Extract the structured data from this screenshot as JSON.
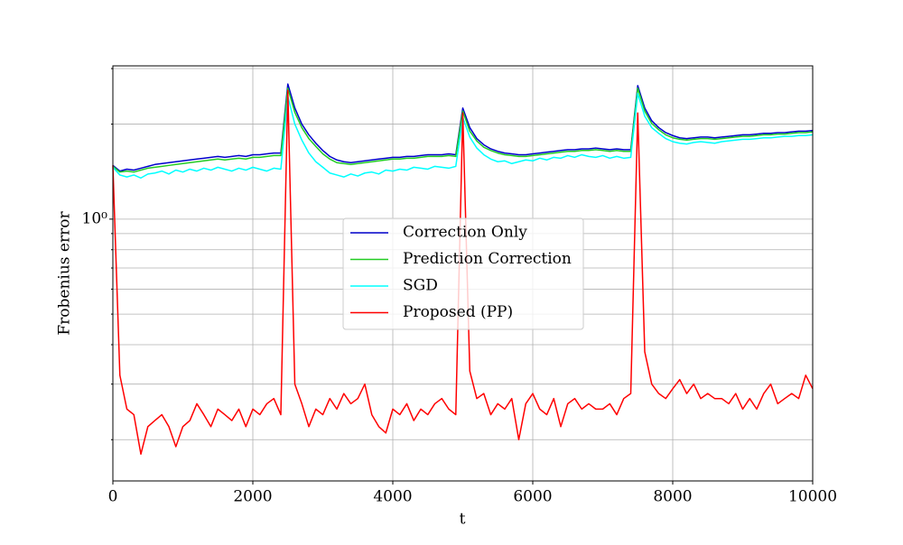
{
  "chart_data": {
    "type": "line",
    "x_label": "t",
    "y_label": "Frobenius error",
    "log_y": true,
    "grid": true,
    "legend": "center",
    "xlim": [
      0,
      10000
    ],
    "ylim": [
      0.148,
      3.06
    ],
    "xticks": [
      0,
      2000,
      4000,
      6000,
      8000,
      10000
    ],
    "yticks": [
      {
        "value": 1,
        "label": "10⁰"
      }
    ],
    "minor_yticks": [
      0.2,
      0.3,
      0.4,
      0.5,
      0.6,
      0.7,
      0.8,
      0.9,
      2,
      3
    ],
    "x": [
      0,
      100,
      200,
      300,
      400,
      500,
      600,
      700,
      800,
      900,
      1000,
      1100,
      1200,
      1300,
      1400,
      1500,
      1600,
      1700,
      1800,
      1900,
      2000,
      2100,
      2200,
      2300,
      2400,
      2500,
      2600,
      2700,
      2800,
      2900,
      3000,
      3100,
      3200,
      3300,
      3400,
      3500,
      3600,
      3700,
      3800,
      3900,
      4000,
      4100,
      4200,
      4300,
      4400,
      4500,
      4600,
      4700,
      4800,
      4900,
      5000,
      5100,
      5200,
      5300,
      5400,
      5500,
      5600,
      5700,
      5800,
      5900,
      6000,
      6100,
      6200,
      6300,
      6400,
      6500,
      6600,
      6700,
      6800,
      6900,
      7000,
      7100,
      7200,
      7300,
      7400,
      7500,
      7600,
      7700,
      7800,
      7900,
      8000,
      8100,
      8200,
      8300,
      8400,
      8500,
      8600,
      8700,
      8800,
      8900,
      9000,
      9100,
      9200,
      9300,
      9400,
      9500,
      9600,
      9700,
      9800,
      9900,
      10000
    ],
    "series": [
      {
        "name": "Correction Only",
        "color": "#0000cc",
        "values": [
          1.48,
          1.42,
          1.44,
          1.43,
          1.45,
          1.47,
          1.49,
          1.5,
          1.51,
          1.52,
          1.53,
          1.54,
          1.55,
          1.56,
          1.57,
          1.58,
          1.57,
          1.58,
          1.59,
          1.58,
          1.6,
          1.6,
          1.61,
          1.62,
          1.62,
          2.68,
          2.25,
          2.0,
          1.85,
          1.74,
          1.65,
          1.58,
          1.54,
          1.52,
          1.51,
          1.52,
          1.53,
          1.54,
          1.55,
          1.56,
          1.57,
          1.57,
          1.58,
          1.58,
          1.59,
          1.6,
          1.6,
          1.6,
          1.61,
          1.6,
          2.25,
          1.95,
          1.8,
          1.72,
          1.67,
          1.64,
          1.62,
          1.61,
          1.6,
          1.6,
          1.61,
          1.62,
          1.63,
          1.64,
          1.65,
          1.66,
          1.66,
          1.67,
          1.67,
          1.68,
          1.67,
          1.66,
          1.67,
          1.66,
          1.66,
          2.65,
          2.25,
          2.05,
          1.95,
          1.88,
          1.84,
          1.81,
          1.8,
          1.81,
          1.82,
          1.82,
          1.81,
          1.82,
          1.83,
          1.84,
          1.85,
          1.85,
          1.86,
          1.87,
          1.87,
          1.88,
          1.88,
          1.89,
          1.9,
          1.9,
          1.91
        ]
      },
      {
        "name": "Prediction Correction",
        "color": "#22cc22",
        "values": [
          1.47,
          1.41,
          1.42,
          1.41,
          1.43,
          1.45,
          1.46,
          1.47,
          1.48,
          1.49,
          1.5,
          1.51,
          1.52,
          1.53,
          1.54,
          1.55,
          1.54,
          1.55,
          1.56,
          1.55,
          1.57,
          1.57,
          1.58,
          1.59,
          1.59,
          2.6,
          2.18,
          1.95,
          1.8,
          1.7,
          1.61,
          1.55,
          1.51,
          1.5,
          1.49,
          1.5,
          1.51,
          1.52,
          1.53,
          1.54,
          1.55,
          1.55,
          1.56,
          1.56,
          1.57,
          1.58,
          1.58,
          1.58,
          1.59,
          1.58,
          2.2,
          1.9,
          1.77,
          1.69,
          1.65,
          1.62,
          1.6,
          1.59,
          1.58,
          1.58,
          1.59,
          1.6,
          1.61,
          1.62,
          1.63,
          1.64,
          1.64,
          1.65,
          1.65,
          1.66,
          1.65,
          1.64,
          1.65,
          1.64,
          1.64,
          2.6,
          2.2,
          2.01,
          1.92,
          1.85,
          1.81,
          1.79,
          1.78,
          1.79,
          1.8,
          1.8,
          1.79,
          1.8,
          1.81,
          1.82,
          1.83,
          1.83,
          1.84,
          1.85,
          1.85,
          1.86,
          1.86,
          1.87,
          1.88,
          1.88,
          1.89
        ]
      },
      {
        "name": "SGD",
        "color": "#00ffff",
        "values": [
          1.46,
          1.38,
          1.36,
          1.38,
          1.35,
          1.39,
          1.4,
          1.42,
          1.39,
          1.43,
          1.41,
          1.44,
          1.42,
          1.45,
          1.43,
          1.46,
          1.44,
          1.42,
          1.45,
          1.43,
          1.46,
          1.44,
          1.42,
          1.45,
          1.44,
          2.45,
          2.0,
          1.78,
          1.62,
          1.52,
          1.46,
          1.4,
          1.38,
          1.36,
          1.39,
          1.37,
          1.4,
          1.41,
          1.39,
          1.43,
          1.42,
          1.44,
          1.43,
          1.46,
          1.45,
          1.44,
          1.47,
          1.46,
          1.45,
          1.47,
          2.1,
          1.82,
          1.68,
          1.6,
          1.55,
          1.52,
          1.53,
          1.5,
          1.52,
          1.54,
          1.53,
          1.56,
          1.54,
          1.57,
          1.56,
          1.59,
          1.57,
          1.6,
          1.58,
          1.57,
          1.59,
          1.56,
          1.58,
          1.56,
          1.57,
          2.5,
          2.12,
          1.95,
          1.87,
          1.8,
          1.76,
          1.74,
          1.73,
          1.75,
          1.76,
          1.75,
          1.74,
          1.76,
          1.77,
          1.78,
          1.79,
          1.79,
          1.8,
          1.81,
          1.81,
          1.82,
          1.83,
          1.83,
          1.84,
          1.84,
          1.85
        ]
      },
      {
        "name": "Proposed (PP)",
        "color": "#ff0000",
        "values": [
          1.48,
          0.32,
          0.25,
          0.24,
          0.18,
          0.22,
          0.23,
          0.24,
          0.22,
          0.19,
          0.22,
          0.23,
          0.26,
          0.24,
          0.22,
          0.25,
          0.24,
          0.23,
          0.25,
          0.22,
          0.25,
          0.24,
          0.26,
          0.27,
          0.24,
          2.56,
          0.3,
          0.26,
          0.22,
          0.25,
          0.24,
          0.27,
          0.25,
          0.28,
          0.26,
          0.27,
          0.3,
          0.24,
          0.22,
          0.21,
          0.25,
          0.24,
          0.26,
          0.23,
          0.25,
          0.24,
          0.26,
          0.27,
          0.25,
          0.24,
          2.17,
          0.33,
          0.27,
          0.28,
          0.24,
          0.26,
          0.25,
          0.27,
          0.2,
          0.26,
          0.28,
          0.25,
          0.24,
          0.27,
          0.22,
          0.26,
          0.27,
          0.25,
          0.26,
          0.25,
          0.25,
          0.26,
          0.24,
          0.27,
          0.28,
          2.17,
          0.38,
          0.3,
          0.28,
          0.27,
          0.29,
          0.31,
          0.28,
          0.3,
          0.27,
          0.28,
          0.27,
          0.27,
          0.26,
          0.28,
          0.25,
          0.27,
          0.25,
          0.28,
          0.3,
          0.26,
          0.27,
          0.28,
          0.27,
          0.32,
          0.29
        ]
      }
    ]
  }
}
